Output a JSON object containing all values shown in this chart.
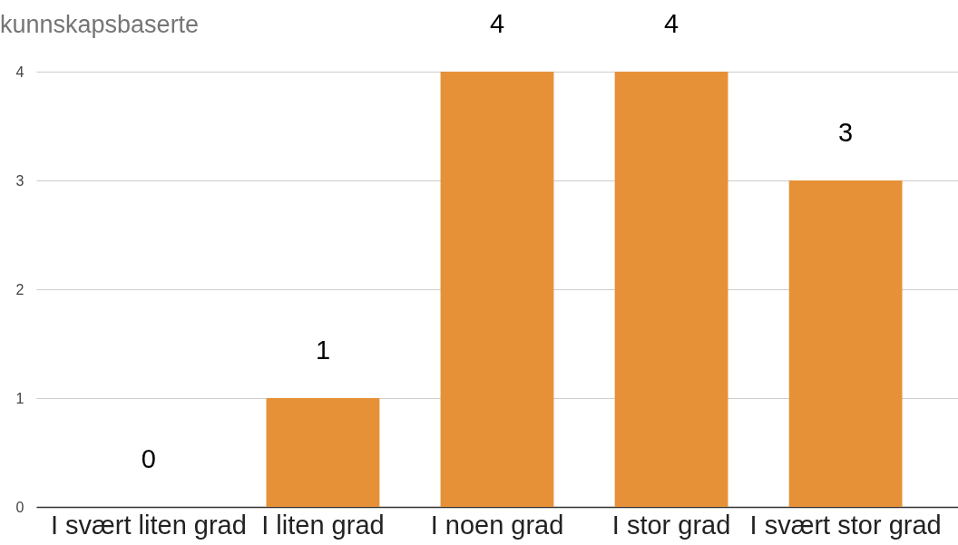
{
  "chart_data": {
    "type": "bar",
    "title": "kunnskapsbaserte",
    "categories": [
      "I svært liten grad",
      "I liten grad",
      "I noen grad",
      "I stor grad",
      "I svært stor grad"
    ],
    "values": [
      0,
      1,
      4,
      4,
      3
    ],
    "color": "#e69138",
    "ylim": [
      0,
      4
    ],
    "yticks": [
      0,
      1,
      2,
      3,
      4
    ],
    "grid": "y",
    "data_labels": true
  }
}
